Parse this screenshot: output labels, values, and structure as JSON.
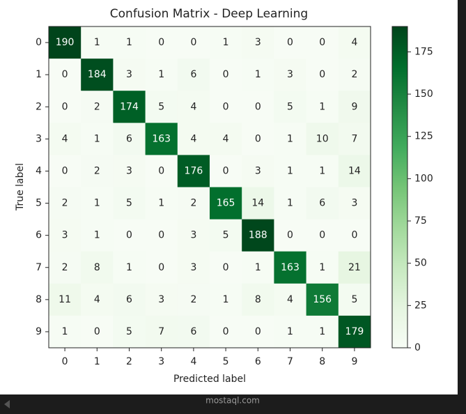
{
  "chart_data": {
    "type": "heatmap",
    "title": "Confusion Matrix - Deep Learning",
    "xlabel": "Predicted label",
    "ylabel": "True label",
    "x": [
      "0",
      "1",
      "2",
      "3",
      "4",
      "5",
      "6",
      "7",
      "8",
      "9"
    ],
    "y": [
      "0",
      "1",
      "2",
      "3",
      "4",
      "5",
      "6",
      "7",
      "8",
      "9"
    ],
    "values": [
      [
        190,
        1,
        1,
        0,
        0,
        1,
        3,
        0,
        0,
        4
      ],
      [
        0,
        184,
        3,
        1,
        6,
        0,
        1,
        3,
        0,
        2
      ],
      [
        0,
        2,
        174,
        5,
        4,
        0,
        0,
        5,
        1,
        9
      ],
      [
        4,
        1,
        6,
        163,
        4,
        4,
        0,
        1,
        10,
        7
      ],
      [
        0,
        2,
        3,
        0,
        176,
        0,
        3,
        1,
        1,
        14
      ],
      [
        2,
        1,
        5,
        1,
        2,
        165,
        14,
        1,
        6,
        3
      ],
      [
        3,
        1,
        0,
        0,
        3,
        5,
        188,
        0,
        0,
        0
      ],
      [
        2,
        8,
        1,
        0,
        3,
        0,
        1,
        163,
        1,
        21
      ],
      [
        11,
        4,
        6,
        3,
        2,
        1,
        8,
        4,
        156,
        5
      ],
      [
        1,
        0,
        5,
        7,
        6,
        0,
        0,
        1,
        1,
        179
      ]
    ],
    "colormap": "Greens",
    "clim": [
      0,
      190
    ],
    "cticks": [
      0,
      25,
      50,
      75,
      100,
      125,
      150,
      175
    ]
  },
  "watermark": "mostaql.com"
}
